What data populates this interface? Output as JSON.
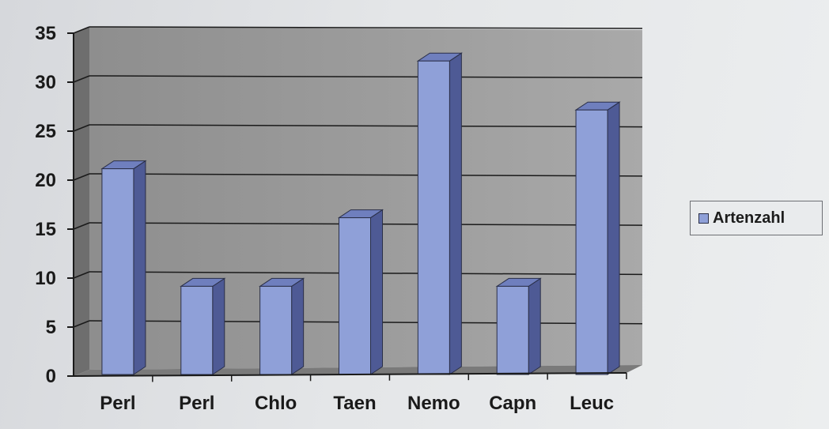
{
  "chart_data": {
    "type": "bar",
    "categories": [
      "Perl",
      "Perl",
      "Chlo",
      "Taen",
      "Nemo",
      "Capn",
      "Leuc"
    ],
    "series": [
      {
        "name": "Artenzahl",
        "values": [
          21,
          9,
          9,
          16,
          32,
          9,
          27
        ]
      }
    ],
    "ylim": [
      0,
      35
    ],
    "yticks": [
      "0",
      "5",
      "10",
      "15",
      "20",
      "25",
      "30",
      "35"
    ],
    "grid": true,
    "legend_position": "right",
    "style": "3d-column",
    "colors": {
      "bar_front": "#8fa0d8",
      "bar_top": "#6f7fbe",
      "bar_side": "#4e5a95",
      "plot_back": "#9a9a9a",
      "floor": "#7a7a7a",
      "grid": "#1a1a1a"
    }
  }
}
